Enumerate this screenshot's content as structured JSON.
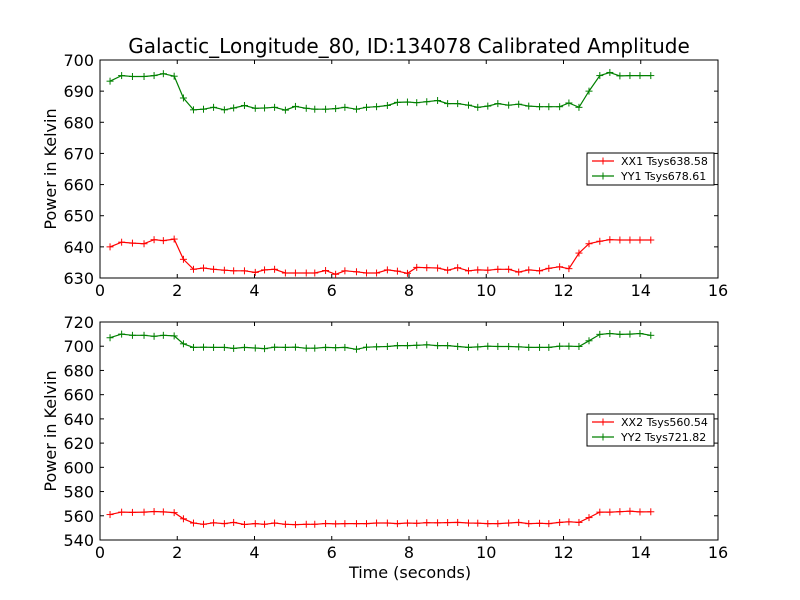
{
  "title": "Galactic_Longitude_80, ID:134078 Calibrated Amplitude",
  "xlabel": "Time (seconds)",
  "chart_data": [
    {
      "type": "line",
      "ylabel": "Power in Kelvin",
      "xlim": [
        0,
        16
      ],
      "ylim": [
        630,
        700
      ],
      "xticks": [
        0,
        2,
        4,
        6,
        8,
        10,
        12,
        14,
        16
      ],
      "yticks": [
        630,
        640,
        650,
        660,
        670,
        680,
        690,
        700
      ],
      "grid": false,
      "legend_position": "center-right",
      "series": [
        {
          "name": "XX1 Tsys638.58",
          "color": "#ff0000",
          "x": [
            0.26,
            0.56,
            0.84,
            1.14,
            1.4,
            1.64,
            1.92,
            2.16,
            2.42,
            2.68,
            2.94,
            3.22,
            3.46,
            3.74,
            4.02,
            4.26,
            4.52,
            4.8,
            5.06,
            5.34,
            5.56,
            5.84,
            6.1,
            6.34,
            6.64,
            6.9,
            7.16,
            7.44,
            7.7,
            7.96,
            8.2,
            8.46,
            8.74,
            9.0,
            9.26,
            9.54,
            9.78,
            10.04,
            10.3,
            10.58,
            10.84,
            11.1,
            11.38,
            11.62,
            11.9,
            12.14,
            12.4,
            12.66,
            12.94,
            13.2,
            13.46,
            13.72,
            13.98,
            14.26
          ],
          "y": [
            640.0,
            641.5,
            641.2,
            641.0,
            642.3,
            642.0,
            642.5,
            636.0,
            632.8,
            633.2,
            632.8,
            632.5,
            632.3,
            632.3,
            631.8,
            632.6,
            632.8,
            631.6,
            631.6,
            631.6,
            631.6,
            632.4,
            631.2,
            632.3,
            632.0,
            631.6,
            631.6,
            632.6,
            632.2,
            631.5,
            633.4,
            633.3,
            633.2,
            632.5,
            633.3,
            632.3,
            632.6,
            632.5,
            632.8,
            632.8,
            631.9,
            632.6,
            632.3,
            633.1,
            633.6,
            633.0,
            638.0,
            641.0,
            641.8,
            642.3,
            642.2,
            642.2,
            642.2,
            642.2
          ]
        },
        {
          "name": "YY1 Tsys678.61",
          "color": "#008000",
          "x": [
            0.26,
            0.56,
            0.84,
            1.14,
            1.4,
            1.64,
            1.92,
            2.16,
            2.42,
            2.68,
            2.94,
            3.22,
            3.46,
            3.74,
            4.02,
            4.26,
            4.52,
            4.8,
            5.06,
            5.34,
            5.56,
            5.84,
            6.1,
            6.34,
            6.64,
            6.9,
            7.16,
            7.44,
            7.7,
            7.96,
            8.2,
            8.46,
            8.74,
            9.0,
            9.26,
            9.54,
            9.78,
            10.04,
            10.3,
            10.58,
            10.84,
            11.1,
            11.38,
            11.62,
            11.9,
            12.14,
            12.4,
            12.66,
            12.94,
            13.2,
            13.46,
            13.72,
            13.98,
            14.26
          ],
          "y": [
            693.2,
            695.0,
            694.7,
            694.7,
            695.0,
            695.6,
            694.8,
            687.8,
            684.0,
            684.2,
            684.8,
            684.0,
            684.6,
            685.4,
            684.5,
            684.6,
            684.8,
            683.9,
            685.1,
            684.5,
            684.2,
            684.2,
            684.4,
            684.8,
            684.2,
            684.8,
            685.0,
            685.4,
            686.4,
            686.5,
            686.3,
            686.6,
            687.0,
            686.0,
            686.0,
            685.5,
            684.8,
            685.2,
            686.0,
            685.5,
            685.8,
            685.2,
            685.0,
            685.0,
            685.0,
            686.2,
            684.8,
            690.0,
            695.0,
            696.0,
            694.9,
            695.0,
            695.0,
            695.0
          ]
        }
      ]
    },
    {
      "type": "line",
      "ylabel": "Power in Kelvin",
      "xlim": [
        0,
        16
      ],
      "ylim": [
        540,
        720
      ],
      "xticks": [
        0,
        2,
        4,
        6,
        8,
        10,
        12,
        14,
        16
      ],
      "yticks": [
        540,
        560,
        580,
        600,
        620,
        640,
        660,
        680,
        700,
        720
      ],
      "grid": false,
      "legend_position": "center-right",
      "series": [
        {
          "name": "XX2 Tsys560.54",
          "color": "#ff0000",
          "x": [
            0.26,
            0.56,
            0.84,
            1.14,
            1.4,
            1.64,
            1.92,
            2.16,
            2.42,
            2.68,
            2.94,
            3.22,
            3.46,
            3.74,
            4.02,
            4.26,
            4.52,
            4.8,
            5.06,
            5.34,
            5.56,
            5.84,
            6.1,
            6.34,
            6.64,
            6.9,
            7.16,
            7.44,
            7.7,
            7.96,
            8.2,
            8.46,
            8.74,
            9.0,
            9.26,
            9.54,
            9.78,
            10.04,
            10.3,
            10.58,
            10.84,
            11.1,
            11.38,
            11.62,
            11.9,
            12.14,
            12.4,
            12.66,
            12.94,
            13.2,
            13.46,
            13.72,
            13.98,
            14.26
          ],
          "y": [
            561.0,
            563.0,
            562.8,
            563.0,
            563.5,
            563.2,
            562.6,
            557.5,
            554.0,
            553.0,
            554.2,
            553.5,
            554.5,
            552.8,
            553.5,
            553.0,
            554.0,
            553.0,
            552.7,
            553.0,
            553.0,
            553.6,
            553.3,
            553.5,
            553.5,
            553.5,
            554.0,
            554.0,
            553.5,
            554.0,
            553.8,
            554.3,
            554.2,
            554.4,
            554.5,
            554.0,
            553.9,
            553.5,
            553.5,
            554.0,
            554.5,
            553.5,
            553.8,
            553.5,
            554.5,
            555.0,
            554.5,
            558.5,
            563.0,
            563.0,
            563.4,
            563.8,
            563.2,
            563.3
          ]
        },
        {
          "name": "YY2 Tsys721.82",
          "color": "#008000",
          "x": [
            0.26,
            0.56,
            0.84,
            1.14,
            1.4,
            1.64,
            1.92,
            2.16,
            2.42,
            2.68,
            2.94,
            3.22,
            3.46,
            3.74,
            4.02,
            4.26,
            4.52,
            4.8,
            5.06,
            5.34,
            5.56,
            5.84,
            6.1,
            6.34,
            6.64,
            6.9,
            7.16,
            7.44,
            7.7,
            7.96,
            8.2,
            8.46,
            8.74,
            9.0,
            9.26,
            9.54,
            9.78,
            10.04,
            10.3,
            10.58,
            10.84,
            11.1,
            11.38,
            11.62,
            11.9,
            12.14,
            12.4,
            12.66,
            12.94,
            13.2,
            13.46,
            13.72,
            13.98,
            14.26
          ],
          "y": [
            707.0,
            710.0,
            709.0,
            709.0,
            708.2,
            709.0,
            708.5,
            702.0,
            699.0,
            699.2,
            699.0,
            699.0,
            698.2,
            699.0,
            698.5,
            698.0,
            699.2,
            699.0,
            699.2,
            698.4,
            698.4,
            699.0,
            698.8,
            699.0,
            697.5,
            699.2,
            699.5,
            699.8,
            700.5,
            700.5,
            700.8,
            701.2,
            700.5,
            700.5,
            699.8,
            699.0,
            699.4,
            700.0,
            699.8,
            699.8,
            699.5,
            699.0,
            699.0,
            699.0,
            700.0,
            700.0,
            699.8,
            704.5,
            709.8,
            710.5,
            709.8,
            710.0,
            710.5,
            709.0
          ]
        }
      ]
    }
  ]
}
